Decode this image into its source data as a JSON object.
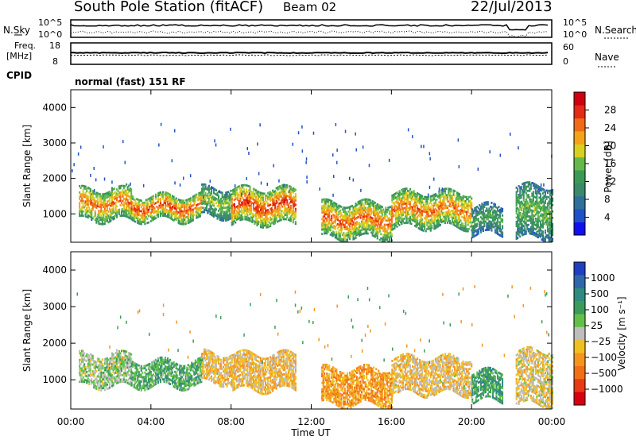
{
  "header": {
    "station": "South Pole Station (fitACF)",
    "beam": "Beam 02",
    "date": "22/Jul/2013"
  },
  "top_panels": {
    "nsky_label": "N.Sky",
    "nsky_top_tick": "10^5",
    "nsky_bottom_tick": "10^0",
    "nsearch_label": "N.Search",
    "nsearch_top_tick": "10^5",
    "nsearch_bottom_tick": "10^0",
    "freq_label": "Freq.",
    "freq_unit": "[MHz]",
    "freq_top_tick": "18",
    "freq_bottom_tick": "8",
    "nave_label": "Nave",
    "nave_top_tick": "60",
    "nave_bottom_tick": "0",
    "cpid_label": "CPID",
    "cpid_text": "normal (fast) 151 RF"
  },
  "colorbars": {
    "power": {
      "label": "Power [dB]",
      "ticks": [
        "4",
        "8",
        "12",
        "16",
        "20",
        "24",
        "28"
      ],
      "colors": [
        "#1010ee",
        "#2050c8",
        "#2f6f9a",
        "#3a8a6a",
        "#3a9a55",
        "#66b84a",
        "#d8d020",
        "#f3a21a",
        "#f06a18",
        "#e52a15",
        "#d00010"
      ]
    },
    "velocity": {
      "label": "Velocity [m s⁻¹]",
      "ticks": [
        "1000",
        "500",
        "100",
        "25",
        "−25",
        "−100",
        "−500",
        "−1000"
      ],
      "colors": [
        "#1f3fbf",
        "#2f68a8",
        "#2f8a80",
        "#3c9a5a",
        "#62c04a",
        "#bdbdbd",
        "#f0c020",
        "#f59520",
        "#f07018",
        "#e83a15",
        "#d80010"
      ]
    }
  },
  "x_axis": {
    "label": "Time UT",
    "ticks": [
      "00:00",
      "04:00",
      "08:00",
      "12:00",
      "16:00",
      "20:00",
      "00:00"
    ]
  },
  "chart_data": [
    {
      "type": "heatmap",
      "title": "Power",
      "ylabel": "Slant Range [km]",
      "xlabel": "",
      "y_ticks": [
        "1000",
        "2000",
        "3000",
        "4000"
      ],
      "ylim": [
        200,
        4500
      ],
      "xlim_hours": [
        0,
        24
      ],
      "colorbar_range_db": [
        0,
        32
      ],
      "echo_regions": [
        {
          "t_start": 0.4,
          "t_end": 3.0,
          "r_min": 800,
          "r_max": 1700,
          "value": 25
        },
        {
          "t_start": 3.0,
          "t_end": 6.5,
          "r_min": 800,
          "r_max": 1500,
          "value": 27
        },
        {
          "t_start": 6.5,
          "t_end": 8.0,
          "r_min": 900,
          "r_max": 1700,
          "value": 18
        },
        {
          "t_start": 8.0,
          "t_end": 11.2,
          "r_min": 700,
          "r_max": 1700,
          "value": 28
        },
        {
          "t_start": 12.5,
          "t_end": 16.0,
          "r_min": 300,
          "r_max": 1300,
          "value": 26
        },
        {
          "t_start": 16.0,
          "t_end": 20.0,
          "r_min": 600,
          "r_max": 1600,
          "value": 25
        },
        {
          "t_start": 20.0,
          "t_end": 21.5,
          "r_min": 400,
          "r_max": 1200,
          "value": 14
        },
        {
          "t_start": 22.2,
          "t_end": 24.0,
          "r_min": 300,
          "r_max": 1800,
          "value": 16
        }
      ]
    },
    {
      "type": "heatmap",
      "title": "Velocity",
      "ylabel": "Slant Range [km]",
      "xlabel": "Time UT",
      "y_ticks": [
        "1000",
        "2000",
        "3000",
        "4000"
      ],
      "ylim": [
        200,
        4500
      ],
      "xlim_hours": [
        0,
        24
      ],
      "colorbar_range_ms": [
        -1000,
        1000
      ],
      "echo_regions": [
        {
          "t_start": 0.4,
          "t_end": 3.0,
          "r_min": 800,
          "r_max": 1700,
          "value": 100
        },
        {
          "t_start": 3.0,
          "t_end": 6.5,
          "r_min": 800,
          "r_max": 1500,
          "value": 300
        },
        {
          "t_start": 6.5,
          "t_end": 8.0,
          "r_min": 900,
          "r_max": 1700,
          "value": -150
        },
        {
          "t_start": 8.0,
          "t_end": 11.2,
          "r_min": 700,
          "r_max": 1700,
          "value": -200
        },
        {
          "t_start": 12.5,
          "t_end": 16.0,
          "r_min": 300,
          "r_max": 1300,
          "value": -350
        },
        {
          "t_start": 16.0,
          "t_end": 20.0,
          "r_min": 600,
          "r_max": 1600,
          "value": -150
        },
        {
          "t_start": 20.0,
          "t_end": 21.5,
          "r_min": 400,
          "r_max": 1200,
          "value": 400
        },
        {
          "t_start": 22.2,
          "t_end": 24.0,
          "r_min": 300,
          "r_max": 1800,
          "value": -100
        }
      ]
    }
  ]
}
